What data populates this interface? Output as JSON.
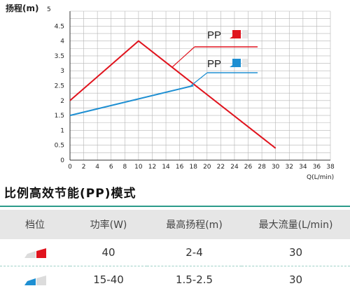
{
  "chart_data": {
    "type": "line",
    "ylabel": "扬程(m)",
    "ylabel_suffix": "5",
    "xlabel": "Q(L/min)",
    "xlim": [
      0,
      38
    ],
    "ylim": [
      0,
      5
    ],
    "x_ticks": [
      "0",
      "2",
      "4",
      "6",
      "8",
      "10",
      "12",
      "14",
      "16",
      "18",
      "20",
      "22",
      "24",
      "26",
      "28",
      "30",
      "32",
      "34",
      "36",
      "38"
    ],
    "y_ticks": [
      "0",
      "0.5",
      "1",
      "1.5",
      "2",
      "2.5",
      "3",
      "3.5",
      "4",
      "4.5"
    ],
    "grid": true,
    "series": [
      {
        "name": "PP",
        "color": "#e0141e",
        "points": [
          [
            0,
            2.0
          ],
          [
            10,
            4.0
          ],
          [
            30,
            0.4
          ]
        ]
      },
      {
        "name": "PP",
        "color": "#1e8fd2",
        "points": [
          [
            0,
            1.5
          ],
          [
            18,
            2.5
          ]
        ]
      }
    ]
  },
  "section_title": "比例高效节能(PP)模式",
  "table": {
    "headers": [
      "档位",
      "功率(W)",
      "最高扬程(m)",
      "最大流量(L/min)"
    ],
    "rows": [
      {
        "power": "40",
        "head": "2-4",
        "flow": "30",
        "swatch_color": "#e0141e"
      },
      {
        "power": "15-40",
        "head": "1.5-2.5",
        "flow": "30",
        "swatch_color": "#1e8fd2"
      }
    ]
  },
  "colors": {
    "accent": "#2b9b8a",
    "header_bg": "#e6e6e6"
  }
}
